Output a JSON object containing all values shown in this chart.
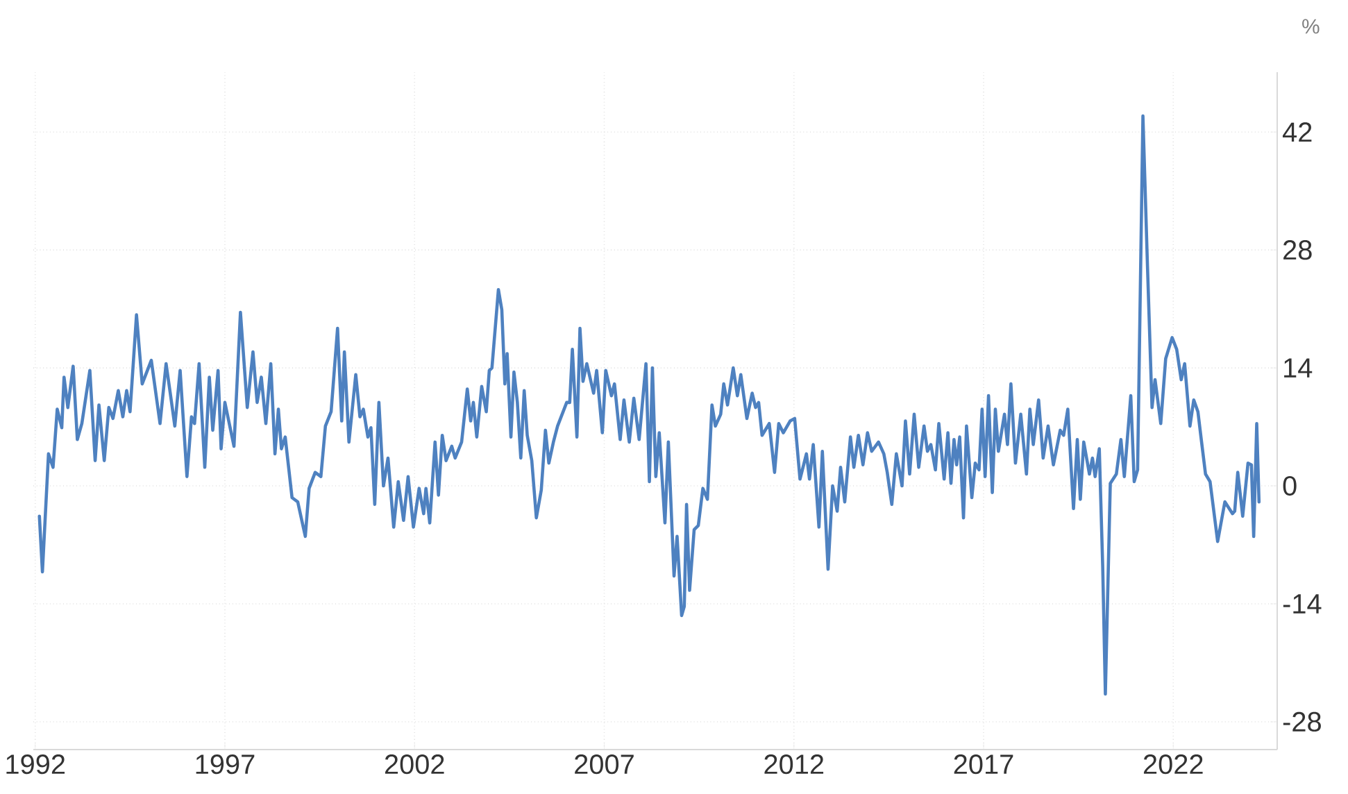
{
  "chart_data": {
    "type": "line",
    "ylabel": "%",
    "color": "#4e81c0",
    "grid": true,
    "xlim": [
      1991.95,
      2024.74
    ],
    "ylim": [
      -31.3,
      49.1
    ],
    "xticks": [
      1992,
      1997,
      2002,
      2007,
      2012,
      2017,
      2022
    ],
    "yticks": [
      -28,
      -14,
      0,
      14,
      28,
      42
    ],
    "x": [
      1992.11,
      1992.19,
      1992.35,
      1992.47,
      1992.58,
      1992.7,
      1992.76,
      1992.86,
      1993.0,
      1993.11,
      1993.23,
      1993.44,
      1993.58,
      1993.68,
      1993.82,
      1993.94,
      1994.05,
      1994.19,
      1994.31,
      1994.41,
      1994.5,
      1994.67,
      1994.82,
      1995.06,
      1995.29,
      1995.45,
      1995.56,
      1995.68,
      1995.82,
      1996.0,
      1996.12,
      1996.2,
      1996.32,
      1996.47,
      1996.59,
      1996.68,
      1996.82,
      1996.9,
      1997.0,
      1997.24,
      1997.41,
      1997.59,
      1997.74,
      1997.85,
      1997.96,
      1998.08,
      1998.21,
      1998.32,
      1998.41,
      1998.49,
      1998.59,
      1998.77,
      1998.92,
      1999.12,
      1999.22,
      1999.38,
      1999.53,
      1999.65,
      1999.8,
      1999.97,
      2000.08,
      2000.15,
      2000.27,
      2000.45,
      2000.56,
      2000.65,
      2000.77,
      2000.85,
      2000.95,
      2001.06,
      2001.18,
      2001.3,
      2001.45,
      2001.57,
      2001.71,
      2001.83,
      2001.97,
      2002.12,
      2002.24,
      2002.3,
      2002.4,
      2002.54,
      2002.63,
      2002.73,
      2002.83,
      2002.98,
      2003.07,
      2003.24,
      2003.39,
      2003.48,
      2003.55,
      2003.64,
      2003.77,
      2003.89,
      2003.97,
      2004.04,
      2004.21,
      2004.3,
      2004.38,
      2004.44,
      2004.54,
      2004.62,
      2004.71,
      2004.8,
      2004.89,
      2004.97,
      2005.09,
      2005.21,
      2005.34,
      2005.45,
      2005.54,
      2005.66,
      2005.77,
      2006.01,
      2006.09,
      2006.16,
      2006.28,
      2006.36,
      2006.44,
      2006.54,
      2006.72,
      2006.8,
      2006.95,
      2007.04,
      2007.19,
      2007.27,
      2007.42,
      2007.52,
      2007.66,
      2007.78,
      2007.92,
      2008.1,
      2008.19,
      2008.27,
      2008.36,
      2008.45,
      2008.6,
      2008.69,
      2008.84,
      2008.92,
      2009.04,
      2009.11,
      2009.17,
      2009.25,
      2009.37,
      2009.48,
      2009.6,
      2009.72,
      2009.84,
      2009.93,
      2010.07,
      2010.15,
      2010.25,
      2010.4,
      2010.51,
      2010.6,
      2010.76,
      2010.9,
      2010.99,
      2011.07,
      2011.16,
      2011.35,
      2011.49,
      2011.6,
      2011.72,
      2011.9,
      2012.02,
      2012.16,
      2012.33,
      2012.41,
      2012.51,
      2012.66,
      2012.75,
      2012.9,
      2013.02,
      2013.14,
      2013.23,
      2013.34,
      2013.49,
      2013.58,
      2013.7,
      2013.82,
      2013.94,
      2014.05,
      2014.23,
      2014.37,
      2014.46,
      2014.58,
      2014.7,
      2014.85,
      2014.94,
      2015.05,
      2015.17,
      2015.29,
      2015.43,
      2015.52,
      2015.61,
      2015.73,
      2015.82,
      2015.96,
      2016.06,
      2016.14,
      2016.22,
      2016.29,
      2016.37,
      2016.47,
      2016.55,
      2016.69,
      2016.78,
      2016.88,
      2016.96,
      2017.04,
      2017.13,
      2017.23,
      2017.31,
      2017.39,
      2017.55,
      2017.63,
      2017.72,
      2017.84,
      2017.98,
      2018.13,
      2018.22,
      2018.31,
      2018.45,
      2018.57,
      2018.7,
      2018.84,
      2019.02,
      2019.11,
      2019.22,
      2019.37,
      2019.47,
      2019.55,
      2019.64,
      2019.79,
      2019.87,
      2019.94,
      2020.05,
      2020.14,
      2020.21,
      2020.34,
      2020.5,
      2020.62,
      2020.71,
      2020.88,
      2020.97,
      2021.06,
      2021.2,
      2021.32,
      2021.44,
      2021.52,
      2021.67,
      2021.8,
      2021.97,
      2022.09,
      2022.21,
      2022.3,
      2022.44,
      2022.54,
      2022.65,
      2022.73,
      2022.85,
      2022.97,
      2023.17,
      2023.36,
      2023.56,
      2023.62,
      2023.7,
      2023.83,
      2023.97,
      2024.06,
      2024.12,
      2024.2,
      2024.26
    ],
    "values": [
      -3.6,
      -10.2,
      3.8,
      2.2,
      9.1,
      6.9,
      12.9,
      9.3,
      14.2,
      5.5,
      7.4,
      13.7,
      3.0,
      9.6,
      3.0,
      9.3,
      8.0,
      11.3,
      8.2,
      11.3,
      8.8,
      20.3,
      12.1,
      14.9,
      7.4,
      14.5,
      11.0,
      7.1,
      13.7,
      1.1,
      8.2,
      7.4,
      14.5,
      2.2,
      12.9,
      6.6,
      13.7,
      4.4,
      9.9,
      4.7,
      20.6,
      9.3,
      15.9,
      9.9,
      12.9,
      7.4,
      14.5,
      3.8,
      9.1,
      4.4,
      5.8,
      -1.4,
      -1.9,
      -6.0,
      -0.3,
      1.6,
      1.1,
      7.1,
      8.8,
      18.7,
      7.7,
      15.9,
      5.2,
      13.2,
      8.2,
      9.1,
      5.8,
      6.9,
      -2.2,
      9.9,
      0,
      3.3,
      -4.9,
      0.5,
      -4.1,
      1.1,
      -4.9,
      -0.3,
      -3.3,
      -0.3,
      -4.4,
      5.2,
      -1.1,
      6.0,
      3.0,
      4.7,
      3.3,
      5.2,
      11.5,
      7.7,
      9.9,
      5.8,
      11.8,
      8.8,
      13.7,
      14.0,
      23.3,
      20.9,
      12.1,
      15.7,
      5.8,
      13.5,
      9.9,
      3.3,
      11.3,
      6.0,
      3.0,
      -3.8,
      -0.5,
      6.6,
      2.7,
      5.2,
      7.1,
      9.9,
      9.9,
      16.2,
      5.8,
      18.7,
      12.4,
      14.5,
      11.0,
      13.7,
      6.3,
      13.7,
      10.7,
      12.1,
      5.5,
      10.2,
      5.2,
      10.4,
      5.5,
      14.5,
      0.5,
      14.0,
      1.1,
      6.3,
      -4.4,
      5.2,
      -10.7,
      -6.0,
      -15.4,
      -14.3,
      -2.2,
      -12.4,
      -5.2,
      -4.7,
      -0.3,
      -1.6,
      9.6,
      7.1,
      8.5,
      12.1,
      9.6,
      14.0,
      10.7,
      13.2,
      8.0,
      11.0,
      9.3,
      9.9,
      6.0,
      7.4,
      1.6,
      7.4,
      6.3,
      7.7,
      8.0,
      0.8,
      3.8,
      0.8,
      4.9,
      -4.9,
      4.1,
      -9.9,
      0,
      -3.0,
      2.2,
      -1.9,
      5.8,
      2.2,
      6.0,
      2.5,
      6.3,
      4.1,
      5.2,
      3.8,
      1.6,
      -2.2,
      3.8,
      0,
      7.7,
      1.4,
      8.5,
      2.2,
      7.1,
      4.1,
      4.9,
      1.9,
      7.4,
      0.8,
      6.3,
      0.3,
      5.5,
      2.5,
      5.8,
      -3.8,
      7.1,
      -1.4,
      2.7,
      1.9,
      9.1,
      1.1,
      10.7,
      -0.8,
      9.1,
      4.1,
      8.5,
      4.9,
      12.1,
      2.7,
      8.5,
      1.4,
      9.1,
      4.9,
      10.2,
      3.3,
      7.1,
      2.5,
      6.6,
      6.0,
      9.1,
      -2.7,
      5.5,
      -1.6,
      5.2,
      1.4,
      3.3,
      1.1,
      4.4,
      -9.6,
      -24.7,
      0.3,
      1.4,
      5.5,
      1.1,
      10.7,
      0.5,
      1.9,
      43.9,
      26.1,
      9.3,
      12.6,
      7.4,
      15.1,
      17.6,
      16.2,
      12.6,
      14.5,
      7.1,
      10.2,
      8.8,
      5.8,
      1.4,
      0.5,
      -6.6,
      -1.9,
      -3.3,
      -3.0,
      1.6,
      -3.6,
      2.7,
      2.5,
      -6.0,
      7.4,
      -1.9
    ]
  }
}
